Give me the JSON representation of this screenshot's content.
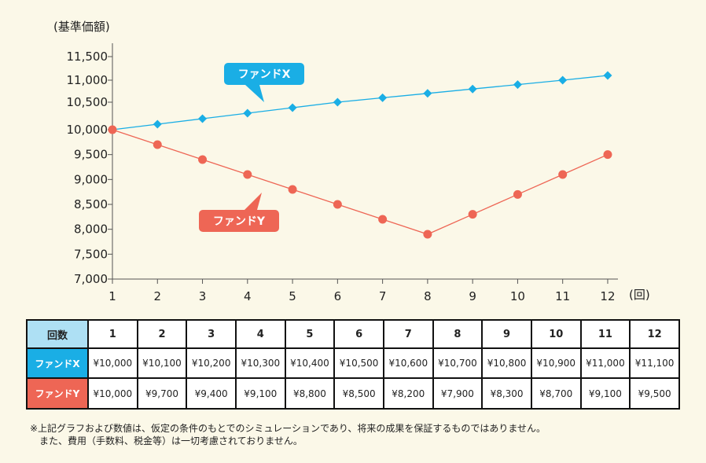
{
  "chart_data": {
    "type": "line",
    "ylabel": "(基準価額)",
    "xlabel": "(回)",
    "ylim": [
      7000,
      11500
    ],
    "yticks": [
      "7,000",
      "7,500",
      "8,000",
      "8,500",
      "9,000",
      "9,500",
      "10,000",
      "10,500",
      "11,000",
      "11,500"
    ],
    "x": [
      1,
      2,
      3,
      4,
      5,
      6,
      7,
      8,
      9,
      10,
      11,
      12
    ],
    "series": [
      {
        "name": "ファンドX",
        "color": "#1aaee5",
        "marker": "diamond",
        "values": [
          10000,
          10100,
          10200,
          10300,
          10400,
          10500,
          10600,
          10700,
          10800,
          10900,
          11000,
          11100
        ]
      },
      {
        "name": "ファンドY",
        "color": "#ee6655",
        "marker": "circle",
        "values": [
          10000,
          9700,
          9400,
          9100,
          8800,
          8500,
          8200,
          7900,
          8300,
          8700,
          9100,
          9500
        ]
      }
    ]
  },
  "table": {
    "corner": "回数",
    "headers": [
      "1",
      "2",
      "3",
      "4",
      "5",
      "6",
      "7",
      "8",
      "9",
      "10",
      "11",
      "12"
    ],
    "rows": [
      {
        "label": "ファンドX",
        "color": "#1aaee5",
        "cells": [
          "¥10,000",
          "¥10,100",
          "¥10,200",
          "¥10,300",
          "¥10,400",
          "¥10,500",
          "¥10,600",
          "¥10,700",
          "¥10,800",
          "¥10,900",
          "¥11,000",
          "¥11,100"
        ]
      },
      {
        "label": "ファンドY",
        "color": "#ee6655",
        "cells": [
          "¥10,000",
          "¥9,700",
          "¥9,400",
          "¥9,100",
          "¥8,800",
          "¥8,500",
          "¥8,200",
          "¥7,900",
          "¥8,300",
          "¥8,700",
          "¥9,100",
          "¥9,500"
        ]
      }
    ]
  },
  "note": {
    "line1": "※上記グラフおよび数値は、仮定の条件のもとでのシミュレーションであり、将来の成果を保証するものではありません。",
    "line2": "また、費用（手数料、税金等）は一切考慮されておりません。"
  }
}
